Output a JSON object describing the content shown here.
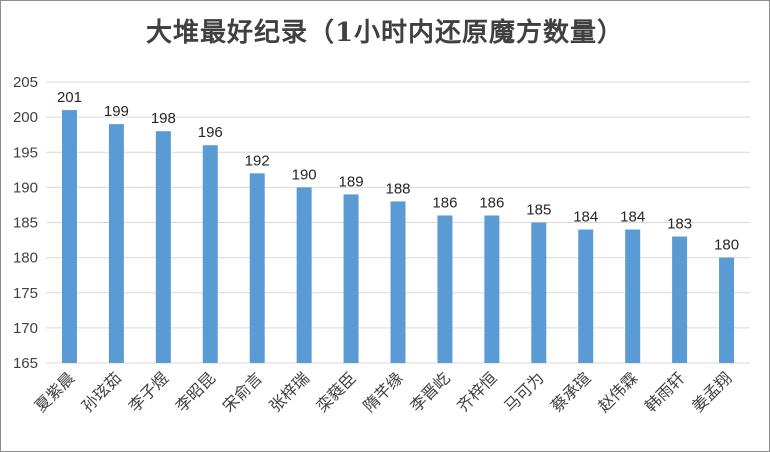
{
  "chart_data": {
    "type": "bar",
    "title": "大堆最好纪录（1小时内还原魔方数量）",
    "categories": [
      "夏紫晨",
      "孙玹茹",
      "李子煜",
      "李昭昆",
      "宋俞言",
      "张梓瑞",
      "栾蕤臣",
      "隋芊缘",
      "李晋屹",
      "齐梓恒",
      "马可为",
      "蔡承瑄",
      "赵伟霖",
      "韩雨轩",
      "姜孟翔"
    ],
    "values": [
      201,
      199,
      198,
      196,
      192,
      190,
      189,
      188,
      186,
      186,
      185,
      184,
      184,
      183,
      180
    ],
    "ylim": [
      165,
      205
    ],
    "yticks": [
      165,
      170,
      175,
      180,
      185,
      190,
      195,
      200,
      205
    ],
    "grid": true,
    "bar_color": "#5b9bd5",
    "grid_color": "#d9d9d9"
  }
}
